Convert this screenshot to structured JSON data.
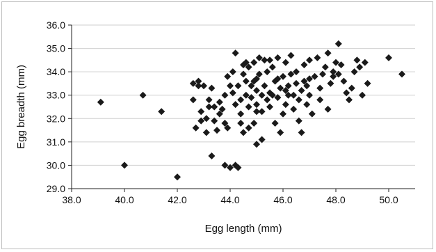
{
  "chart_data": {
    "type": "scatter",
    "title": "",
    "xlabel": "Egg length (mm)",
    "ylabel": "Egg breadth (mm)",
    "xlim": [
      38.0,
      51.0
    ],
    "ylim": [
      29.0,
      36.0
    ],
    "x_ticks": [
      38.0,
      40.0,
      42.0,
      44.0,
      46.0,
      48.0,
      50.0
    ],
    "y_ticks": [
      29.0,
      30.0,
      31.0,
      32.0,
      33.0,
      34.0,
      35.0,
      36.0
    ],
    "x_tick_labels": [
      "38.0",
      "40.0",
      "42.0",
      "44.0",
      "46.0",
      "48.0",
      "50.0"
    ],
    "y_tick_labels": [
      "29.0",
      "30.0",
      "31.0",
      "32.0",
      "33.0",
      "34.0",
      "35.0",
      "36.0"
    ],
    "grid": "horizontal",
    "legend": "none",
    "marker": "diamond",
    "marker_color": "#1a1a1a",
    "points": [
      [
        39.1,
        32.7
      ],
      [
        40.0,
        30.0
      ],
      [
        40.7,
        33.0
      ],
      [
        41.4,
        32.3
      ],
      [
        42.0,
        29.5
      ],
      [
        42.6,
        33.5
      ],
      [
        42.6,
        32.8
      ],
      [
        42.8,
        33.6
      ],
      [
        42.8,
        33.4
      ],
      [
        42.9,
        32.3
      ],
      [
        42.9,
        31.9
      ],
      [
        43.0,
        33.4
      ],
      [
        43.1,
        32.0
      ],
      [
        43.1,
        31.4
      ],
      [
        43.2,
        32.8
      ],
      [
        43.3,
        33.3
      ],
      [
        43.3,
        30.4
      ],
      [
        43.4,
        32.5
      ],
      [
        43.4,
        31.9
      ],
      [
        43.5,
        31.5
      ],
      [
        43.6,
        32.7
      ],
      [
        43.7,
        32.4
      ],
      [
        43.8,
        33.0
      ],
      [
        43.8,
        31.8
      ],
      [
        43.8,
        30.0
      ],
      [
        43.9,
        33.8
      ],
      [
        43.9,
        31.6
      ],
      [
        44.0,
        29.9
      ],
      [
        44.1,
        34.0
      ],
      [
        44.1,
        33.1
      ],
      [
        44.2,
        32.6
      ],
      [
        44.2,
        30.0
      ],
      [
        44.2,
        34.8
      ],
      [
        44.3,
        33.4
      ],
      [
        44.3,
        29.9
      ],
      [
        44.4,
        32.8
      ],
      [
        44.4,
        32.2
      ],
      [
        44.5,
        34.3
      ],
      [
        44.5,
        33.9
      ],
      [
        44.5,
        31.4
      ],
      [
        44.6,
        33.6
      ],
      [
        44.6,
        33.0
      ],
      [
        44.7,
        34.2
      ],
      [
        44.7,
        32.5
      ],
      [
        44.7,
        31.6
      ],
      [
        44.8,
        33.4
      ],
      [
        44.8,
        32.9
      ],
      [
        44.9,
        34.4
      ],
      [
        44.9,
        31.8
      ],
      [
        45.0,
        33.7
      ],
      [
        45.0,
        33.2
      ],
      [
        45.0,
        32.6
      ],
      [
        45.0,
        30.9
      ],
      [
        45.1,
        34.6
      ],
      [
        45.1,
        33.9
      ],
      [
        45.2,
        32.3
      ],
      [
        45.2,
        31.1
      ],
      [
        45.3,
        34.5
      ],
      [
        45.3,
        33.4
      ],
      [
        45.4,
        32.8
      ],
      [
        45.4,
        34.0
      ],
      [
        45.5,
        33.1
      ],
      [
        45.5,
        32.5
      ],
      [
        45.6,
        34.2
      ],
      [
        45.7,
        33.6
      ],
      [
        45.7,
        31.8
      ],
      [
        45.8,
        34.6
      ],
      [
        45.8,
        32.9
      ],
      [
        45.9,
        33.3
      ],
      [
        45.9,
        31.4
      ],
      [
        46.0,
        33.8
      ],
      [
        46.0,
        32.2
      ],
      [
        46.1,
        34.4
      ],
      [
        46.1,
        32.6
      ],
      [
        46.2,
        33.4
      ],
      [
        46.2,
        33.0
      ],
      [
        46.3,
        34.7
      ],
      [
        46.3,
        33.9
      ],
      [
        46.4,
        32.4
      ],
      [
        46.5,
        33.5
      ],
      [
        46.5,
        34.0
      ],
      [
        46.6,
        32.8
      ],
      [
        46.7,
        33.2
      ],
      [
        46.7,
        31.4
      ],
      [
        46.8,
        34.3
      ],
      [
        46.8,
        33.6
      ],
      [
        46.9,
        32.6
      ],
      [
        47.0,
        33.0
      ],
      [
        47.0,
        34.5
      ],
      [
        47.1,
        32.2
      ],
      [
        47.2,
        33.8
      ],
      [
        47.3,
        34.6
      ],
      [
        47.4,
        33.3
      ],
      [
        47.5,
        33.9
      ],
      [
        47.6,
        34.2
      ],
      [
        47.7,
        32.4
      ],
      [
        47.7,
        34.8
      ],
      [
        47.8,
        33.5
      ],
      [
        47.9,
        34.0
      ],
      [
        48.0,
        34.4
      ],
      [
        48.1,
        35.2
      ],
      [
        48.1,
        33.9
      ],
      [
        48.2,
        34.3
      ],
      [
        48.3,
        33.6
      ],
      [
        48.4,
        33.1
      ],
      [
        48.5,
        32.8
      ],
      [
        48.7,
        34.0
      ],
      [
        48.8,
        34.5
      ],
      [
        48.9,
        34.2
      ],
      [
        49.0,
        33.0
      ],
      [
        49.1,
        34.4
      ],
      [
        49.2,
        33.5
      ],
      [
        50.0,
        34.6
      ],
      [
        50.5,
        33.9
      ],
      [
        44.6,
        34.4
      ],
      [
        45.2,
        33.0
      ],
      [
        45.8,
        33.7
      ],
      [
        46.4,
        33.0
      ],
      [
        47.0,
        33.7
      ],
      [
        44.0,
        33.4
      ],
      [
        43.6,
        32.2
      ],
      [
        45.5,
        34.5
      ],
      [
        46.9,
        33.4
      ],
      [
        47.4,
        32.8
      ],
      [
        44.4,
        31.8
      ],
      [
        45.0,
        32.3
      ],
      [
        46.6,
        31.9
      ],
      [
        43.2,
        32.5
      ],
      [
        42.7,
        31.6
      ],
      [
        48.6,
        33.3
      ],
      [
        44.9,
        33.6
      ],
      [
        45.6,
        33.0
      ],
      [
        46.1,
        33.2
      ],
      [
        47.9,
        33.8
      ]
    ]
  }
}
